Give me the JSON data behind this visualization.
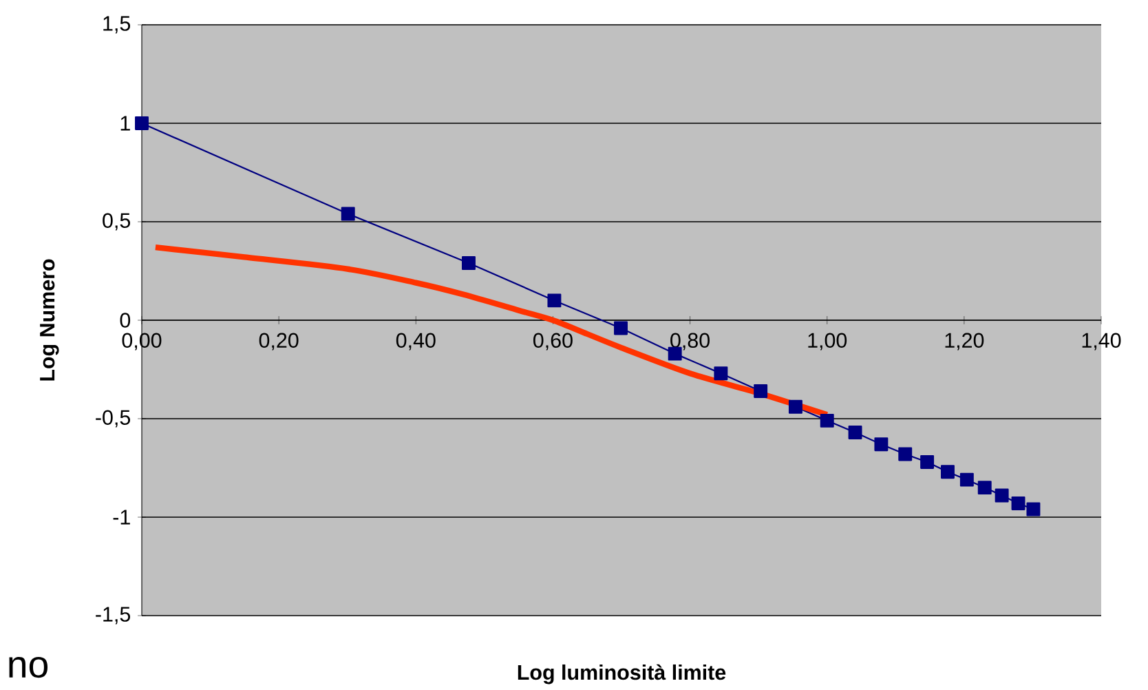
{
  "chart_data": {
    "type": "line",
    "xlabel": "Log luminosità limite",
    "ylabel": "Log Numero",
    "xlim": [
      0,
      1.4
    ],
    "ylim": [
      -1.5,
      1.5
    ],
    "xticks": [
      {
        "value": 0,
        "label": "0,00"
      },
      {
        "value": 0.2,
        "label": "0,20"
      },
      {
        "value": 0.4,
        "label": "0,40"
      },
      {
        "value": 0.6,
        "label": "0,60"
      },
      {
        "value": 0.8,
        "label": "0,80"
      },
      {
        "value": 1.0,
        "label": "1,00"
      },
      {
        "value": 1.2,
        "label": "1,20"
      },
      {
        "value": 1.4,
        "label": "1,40"
      }
    ],
    "yticks": [
      {
        "value": -1.5,
        "label": "-1,5"
      },
      {
        "value": -1,
        "label": "-1"
      },
      {
        "value": -0.5,
        "label": "-0,5"
      },
      {
        "value": 0,
        "label": "0"
      },
      {
        "value": 0.5,
        "label": "0,5"
      },
      {
        "value": 1,
        "label": "1"
      },
      {
        "value": 1.5,
        "label": "1,5"
      }
    ],
    "grid": "y",
    "legend": false,
    "series": [
      {
        "color": "#000080",
        "marker": "square",
        "x": [
          0,
          0.301,
          0.477,
          0.602,
          0.699,
          0.778,
          0.845,
          0.903,
          0.954,
          1.0,
          1.041,
          1.079,
          1.114,
          1.146,
          1.176,
          1.204,
          1.23,
          1.255,
          1.279,
          1.301
        ],
        "values": [
          1,
          0.54,
          0.29,
          0.1,
          -0.04,
          -0.17,
          -0.27,
          -0.36,
          -0.44,
          -0.51,
          -0.57,
          -0.63,
          -0.68,
          -0.72,
          -0.77,
          -0.81,
          -0.85,
          -0.89,
          -0.93,
          -0.96
        ]
      },
      {
        "color": "#ff3300",
        "marker": "none",
        "x": [
          0.02,
          0.15,
          0.3,
          0.4,
          0.47,
          0.55,
          0.6,
          0.65,
          0.7,
          0.8,
          0.9,
          1.0
        ],
        "values": [
          0.37,
          0.32,
          0.26,
          0.19,
          0.13,
          0.05,
          0.0,
          -0.07,
          -0.14,
          -0.27,
          -0.37,
          -0.48
        ]
      }
    ],
    "annotations": [
      "no"
    ]
  }
}
